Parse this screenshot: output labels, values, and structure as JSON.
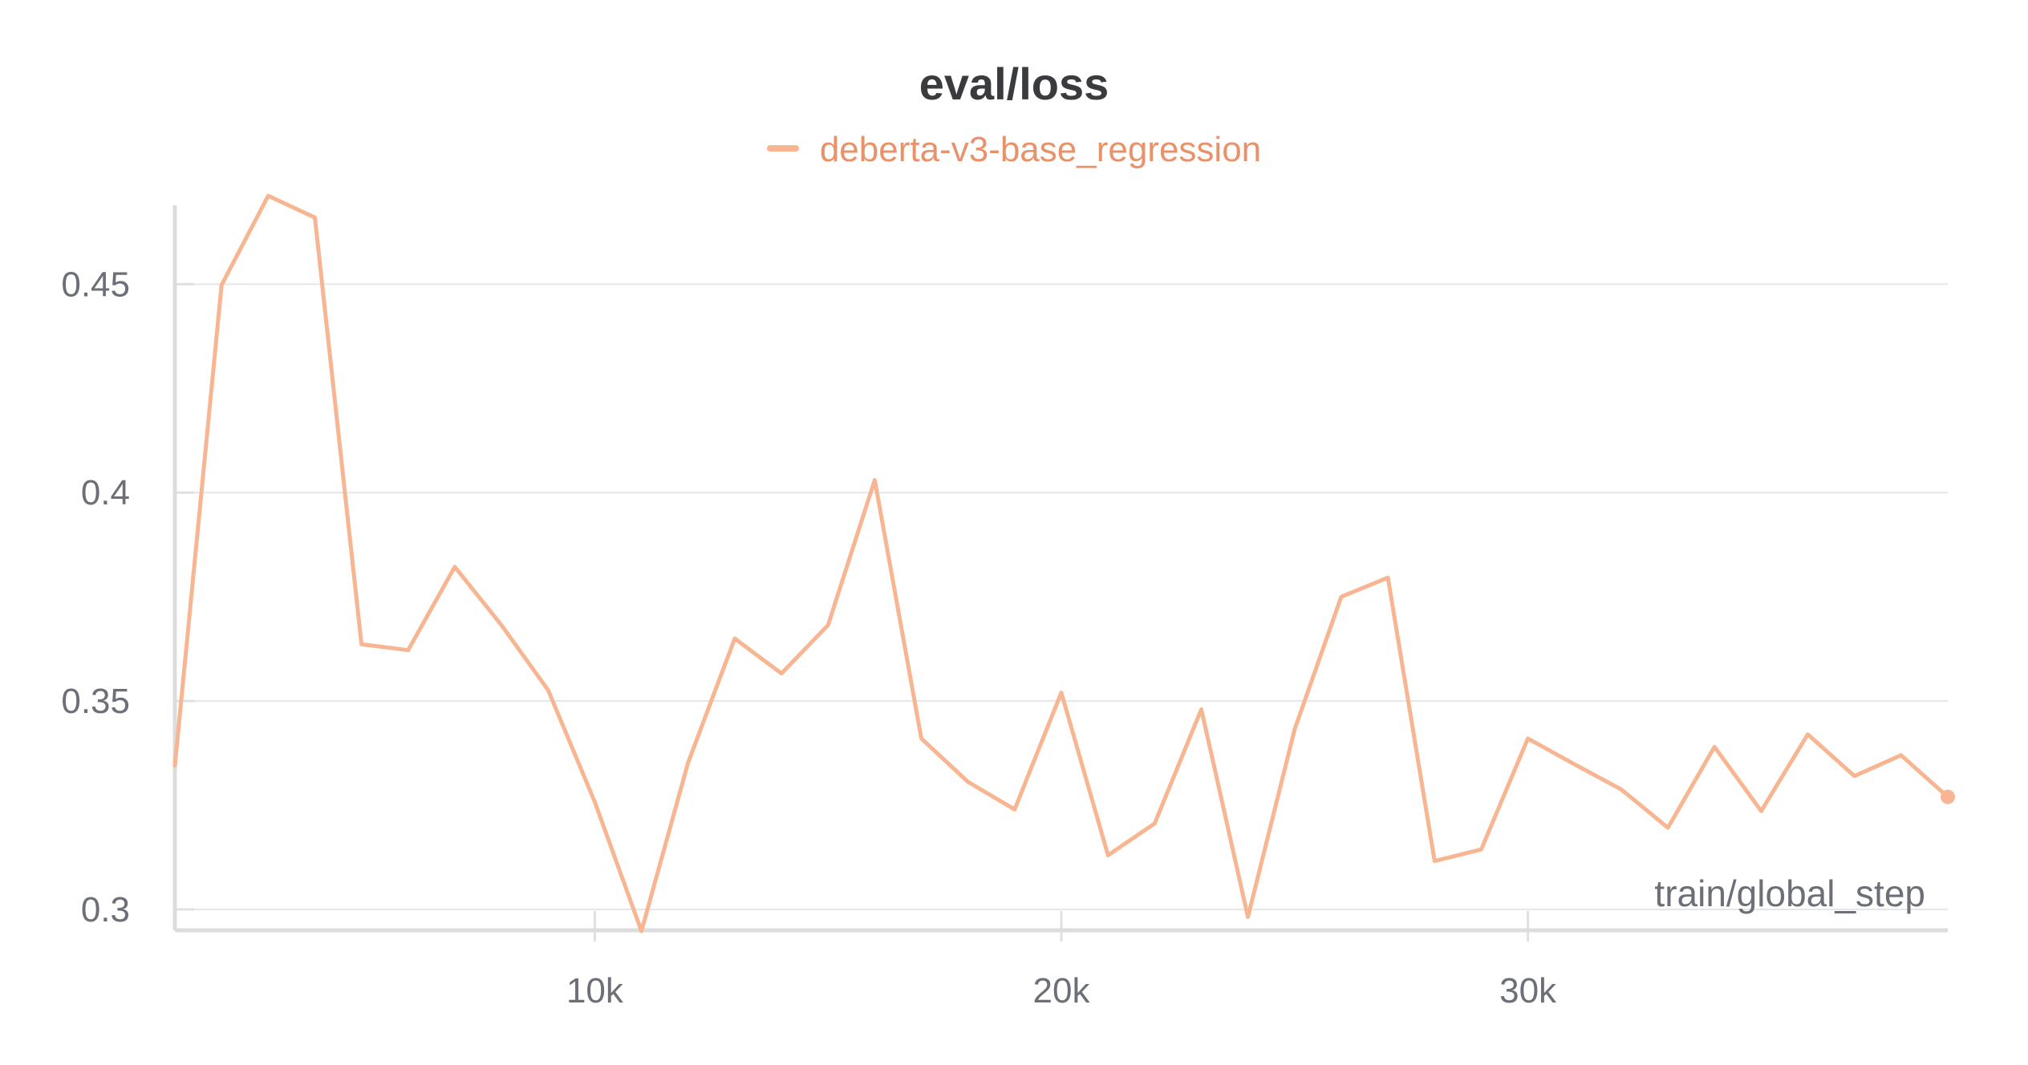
{
  "chart_data": {
    "type": "line",
    "title": "eval/loss",
    "xlabel": "train/global_step",
    "ylabel": "",
    "xlim": [
      1000,
      39000
    ],
    "ylim": [
      0.295,
      0.472
    ],
    "grid": true,
    "legend_position": "top-center",
    "x_ticks": [
      10000,
      20000,
      30000
    ],
    "x_tick_labels": [
      "10k",
      "20k",
      "30k"
    ],
    "y_ticks": [
      0.3,
      0.35,
      0.4,
      0.45
    ],
    "y_tick_labels": [
      "0.3",
      "0.35",
      "0.4",
      "0.45"
    ],
    "series": [
      {
        "name": "deberta-v3-base_regression",
        "color": "#f7b591",
        "x": [
          1000,
          2000,
          3000,
          4000,
          5000,
          6000,
          7000,
          8000,
          9000,
          10000,
          11000,
          12000,
          13000,
          14000,
          15000,
          16000,
          17000,
          18000,
          19000,
          20000,
          21000,
          22000,
          23000,
          24000,
          25000,
          26000,
          27000,
          28000,
          29000,
          30000,
          31000,
          32000,
          33000,
          34000,
          35000,
          36000,
          37000,
          38000,
          39000
        ],
        "y": [
          0.3345,
          0.4498,
          0.4712,
          0.466,
          0.3636,
          0.3622,
          0.3822,
          0.3682,
          0.3526,
          0.3258,
          0.2948,
          0.3352,
          0.365,
          0.3566,
          0.3682,
          0.403,
          0.341,
          0.3306,
          0.324,
          0.352,
          0.313,
          0.3206,
          0.348,
          0.2982,
          0.3432,
          0.375,
          0.3796,
          0.3116,
          0.3144,
          0.341,
          0.3348,
          0.3288,
          0.3196,
          0.339,
          0.3236,
          0.342,
          0.332,
          0.337,
          0.327
        ]
      }
    ]
  }
}
